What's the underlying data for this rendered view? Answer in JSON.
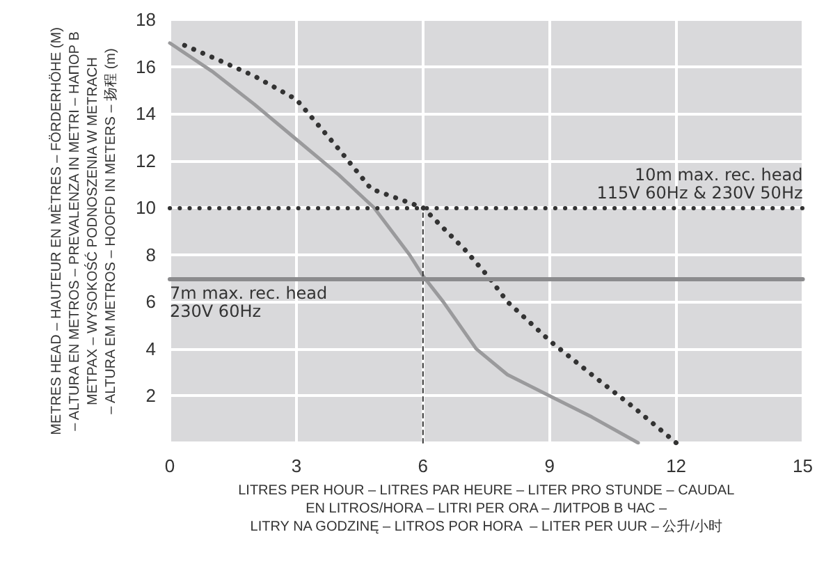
{
  "chart_data": {
    "type": "line",
    "xlabel": "LITRES PER HOUR – LITRES PAR HEURE – LITER PRO STUNDE – CAUDAL\nEN LITROS/HORA – LITRI PER ORA – ЛИТРОВ В ЧАС –\nLITRY NA GODZINĘ – LITROS POR HORA  – LITER PER UUR – 公升/小时",
    "ylabel": "METRES HEAD – HAUTEUR EN MÈTRES – FÖRDERHÖHE (M)\n– ALTURA EN METROS – PREVALENZA IN METRI – НАПОР В\nМЕТРАХ – WYSOKOŚĆ PODNOSZENIA W METRACH\n– ALTURA EM METROS – HOOFD IN METERS – 扬程 (m)",
    "series": [
      {
        "color": "#9a9a9c",
        "line_style": "solid",
        "x": [
          0,
          1,
          2,
          3,
          4,
          4.84,
          5.68,
          6,
          6.48,
          7.26,
          8,
          9,
          10,
          11.1
        ],
        "values": [
          17,
          15.8,
          14.4,
          12.9,
          11.4,
          10,
          8,
          7.1,
          6,
          4,
          2.9,
          2,
          1.1,
          0
        ]
      },
      {
        "color": "#333333",
        "line_style": "dotted",
        "x": [
          0.35,
          1,
          2,
          3,
          4,
          4.77,
          6,
          7,
          7.58,
          8,
          9.03,
          10,
          11,
          12
        ],
        "values": [
          16.9,
          16.4,
          15.6,
          14.6,
          12.5,
          10.8,
          10,
          8.2,
          7,
          6,
          4.3,
          2.9,
          1.5,
          0
        ]
      },
      {
        "color": "#333333",
        "line_style": "dashed",
        "x": [
          6,
          6
        ],
        "values": [
          0,
          10
        ]
      }
    ],
    "ref_lines": [
      {
        "axis": "y",
        "value": 10,
        "label": "10m max. rec. head\n115V 60Hz & 230V 50Hz",
        "color": "#333333",
        "line_style": "dotted"
      },
      {
        "axis": "y",
        "value": 7,
        "label": "7m max. rec. head\n230V 60Hz",
        "color": "#8c8c8e",
        "line_style": "solid"
      }
    ],
    "xlim": [
      0,
      15
    ],
    "xticks": [
      0,
      3,
      6,
      9,
      12,
      15
    ],
    "ylim": [
      0,
      18
    ],
    "yticks": [
      {
        "value": 0,
        "label": null
      },
      2,
      4,
      6,
      8,
      10,
      12,
      14,
      16,
      18
    ],
    "grid": true,
    "marker": "none"
  }
}
